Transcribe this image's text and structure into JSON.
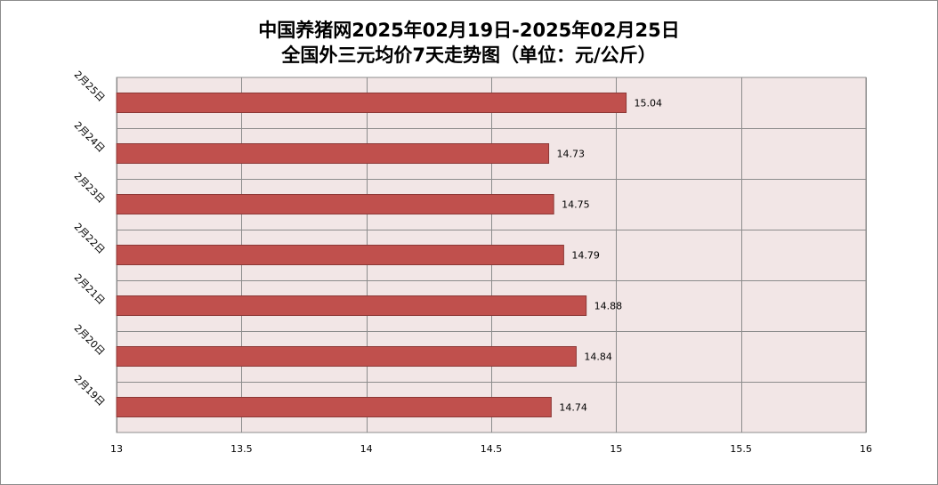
{
  "title_line1": "中国养猪网2025年02月19日-2025年02月25日",
  "title_line2": "全国外三元均价7天走势图（单位：元/公斤）",
  "colors": {
    "bar": "#c0504d",
    "bar_border": "#8c3836",
    "plot_bg": "#f2e6e6",
    "grid": "#8c8c8c"
  },
  "chart_data": {
    "type": "bar",
    "orientation": "horizontal",
    "categories": [
      "2月25日",
      "2月24日",
      "2月23日",
      "2月22日",
      "2月21日",
      "2月20日",
      "2月19日"
    ],
    "values": [
      15.04,
      14.73,
      14.75,
      14.79,
      14.88,
      14.84,
      14.74
    ],
    "data_labels": [
      "15.04",
      "14.73",
      "14.75",
      "14.79",
      "14.88",
      "14.84",
      "14.74"
    ],
    "xlim": [
      13,
      16
    ],
    "xticks": [
      13,
      13.5,
      14,
      14.5,
      15,
      15.5,
      16
    ],
    "xtick_labels": [
      "13",
      "13.5",
      "14",
      "14.5",
      "15",
      "15.5",
      "16"
    ],
    "grid": true,
    "legend": "none"
  }
}
